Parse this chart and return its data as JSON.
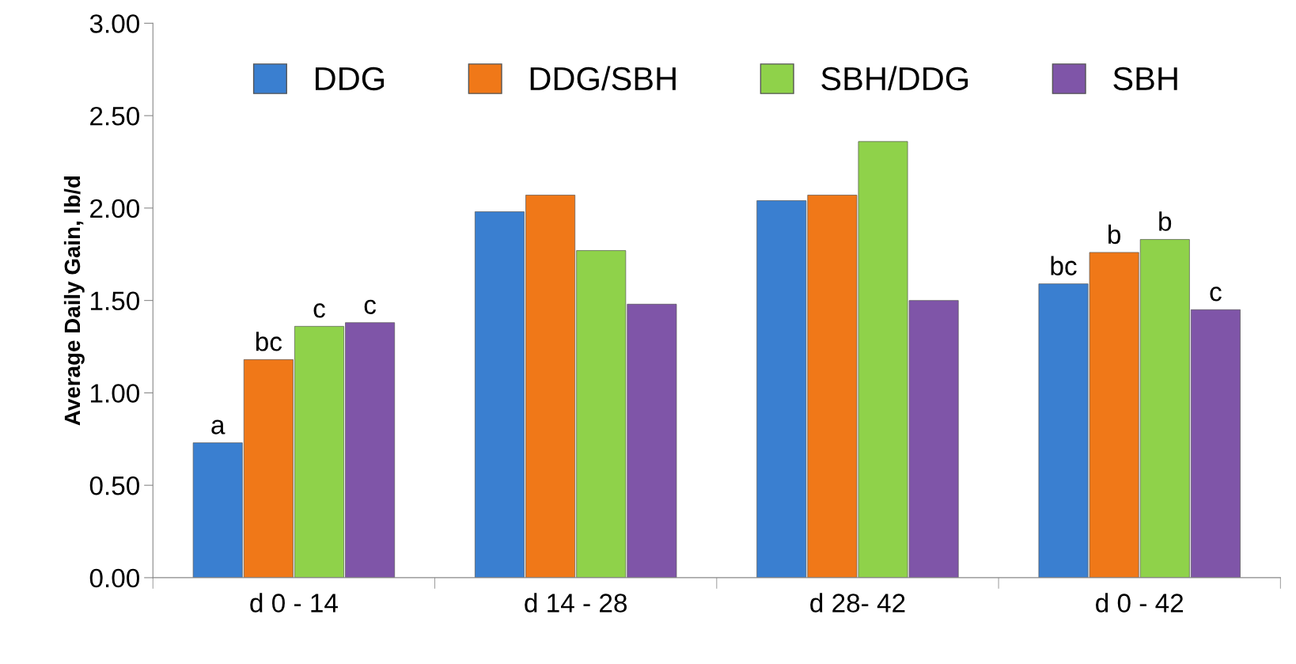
{
  "chart_data": {
    "type": "bar",
    "ylabel": "Average Daily Gain, lb/d",
    "categories": [
      "d 0 - 14",
      "d 14 - 28",
      "d 28- 42",
      "d 0 - 42"
    ],
    "series": [
      {
        "name": "DDG",
        "color": "#3a7fd0",
        "values": [
          0.73,
          1.98,
          2.04,
          1.59
        ],
        "value_labels": [
          "a",
          null,
          null,
          "bc"
        ]
      },
      {
        "name": "DDG/SBH",
        "color": "#f07818",
        "values": [
          1.18,
          2.07,
          2.07,
          1.76
        ],
        "value_labels": [
          "bc",
          null,
          null,
          "b"
        ]
      },
      {
        "name": "SBH/DDG",
        "color": "#8fd24a",
        "values": [
          1.36,
          1.77,
          2.36,
          1.83
        ],
        "value_labels": [
          "c",
          null,
          null,
          "b"
        ]
      },
      {
        "name": "SBH",
        "color": "#7f55a8",
        "values": [
          1.38,
          1.48,
          1.5,
          1.45
        ],
        "value_labels": [
          "c",
          null,
          null,
          "c"
        ]
      }
    ],
    "ylim": [
      0,
      3
    ],
    "yticks": [
      {
        "value": 0,
        "label": "0.00"
      },
      {
        "value": 0.5,
        "label": "0.50"
      },
      {
        "value": 1,
        "label": "1.00"
      },
      {
        "value": 1.5,
        "label": "1.50"
      },
      {
        "value": 2,
        "label": "2.00"
      },
      {
        "value": 2.5,
        "label": "2.50"
      },
      {
        "value": 3,
        "label": "3.00"
      }
    ],
    "grid": false,
    "legend": "top"
  }
}
